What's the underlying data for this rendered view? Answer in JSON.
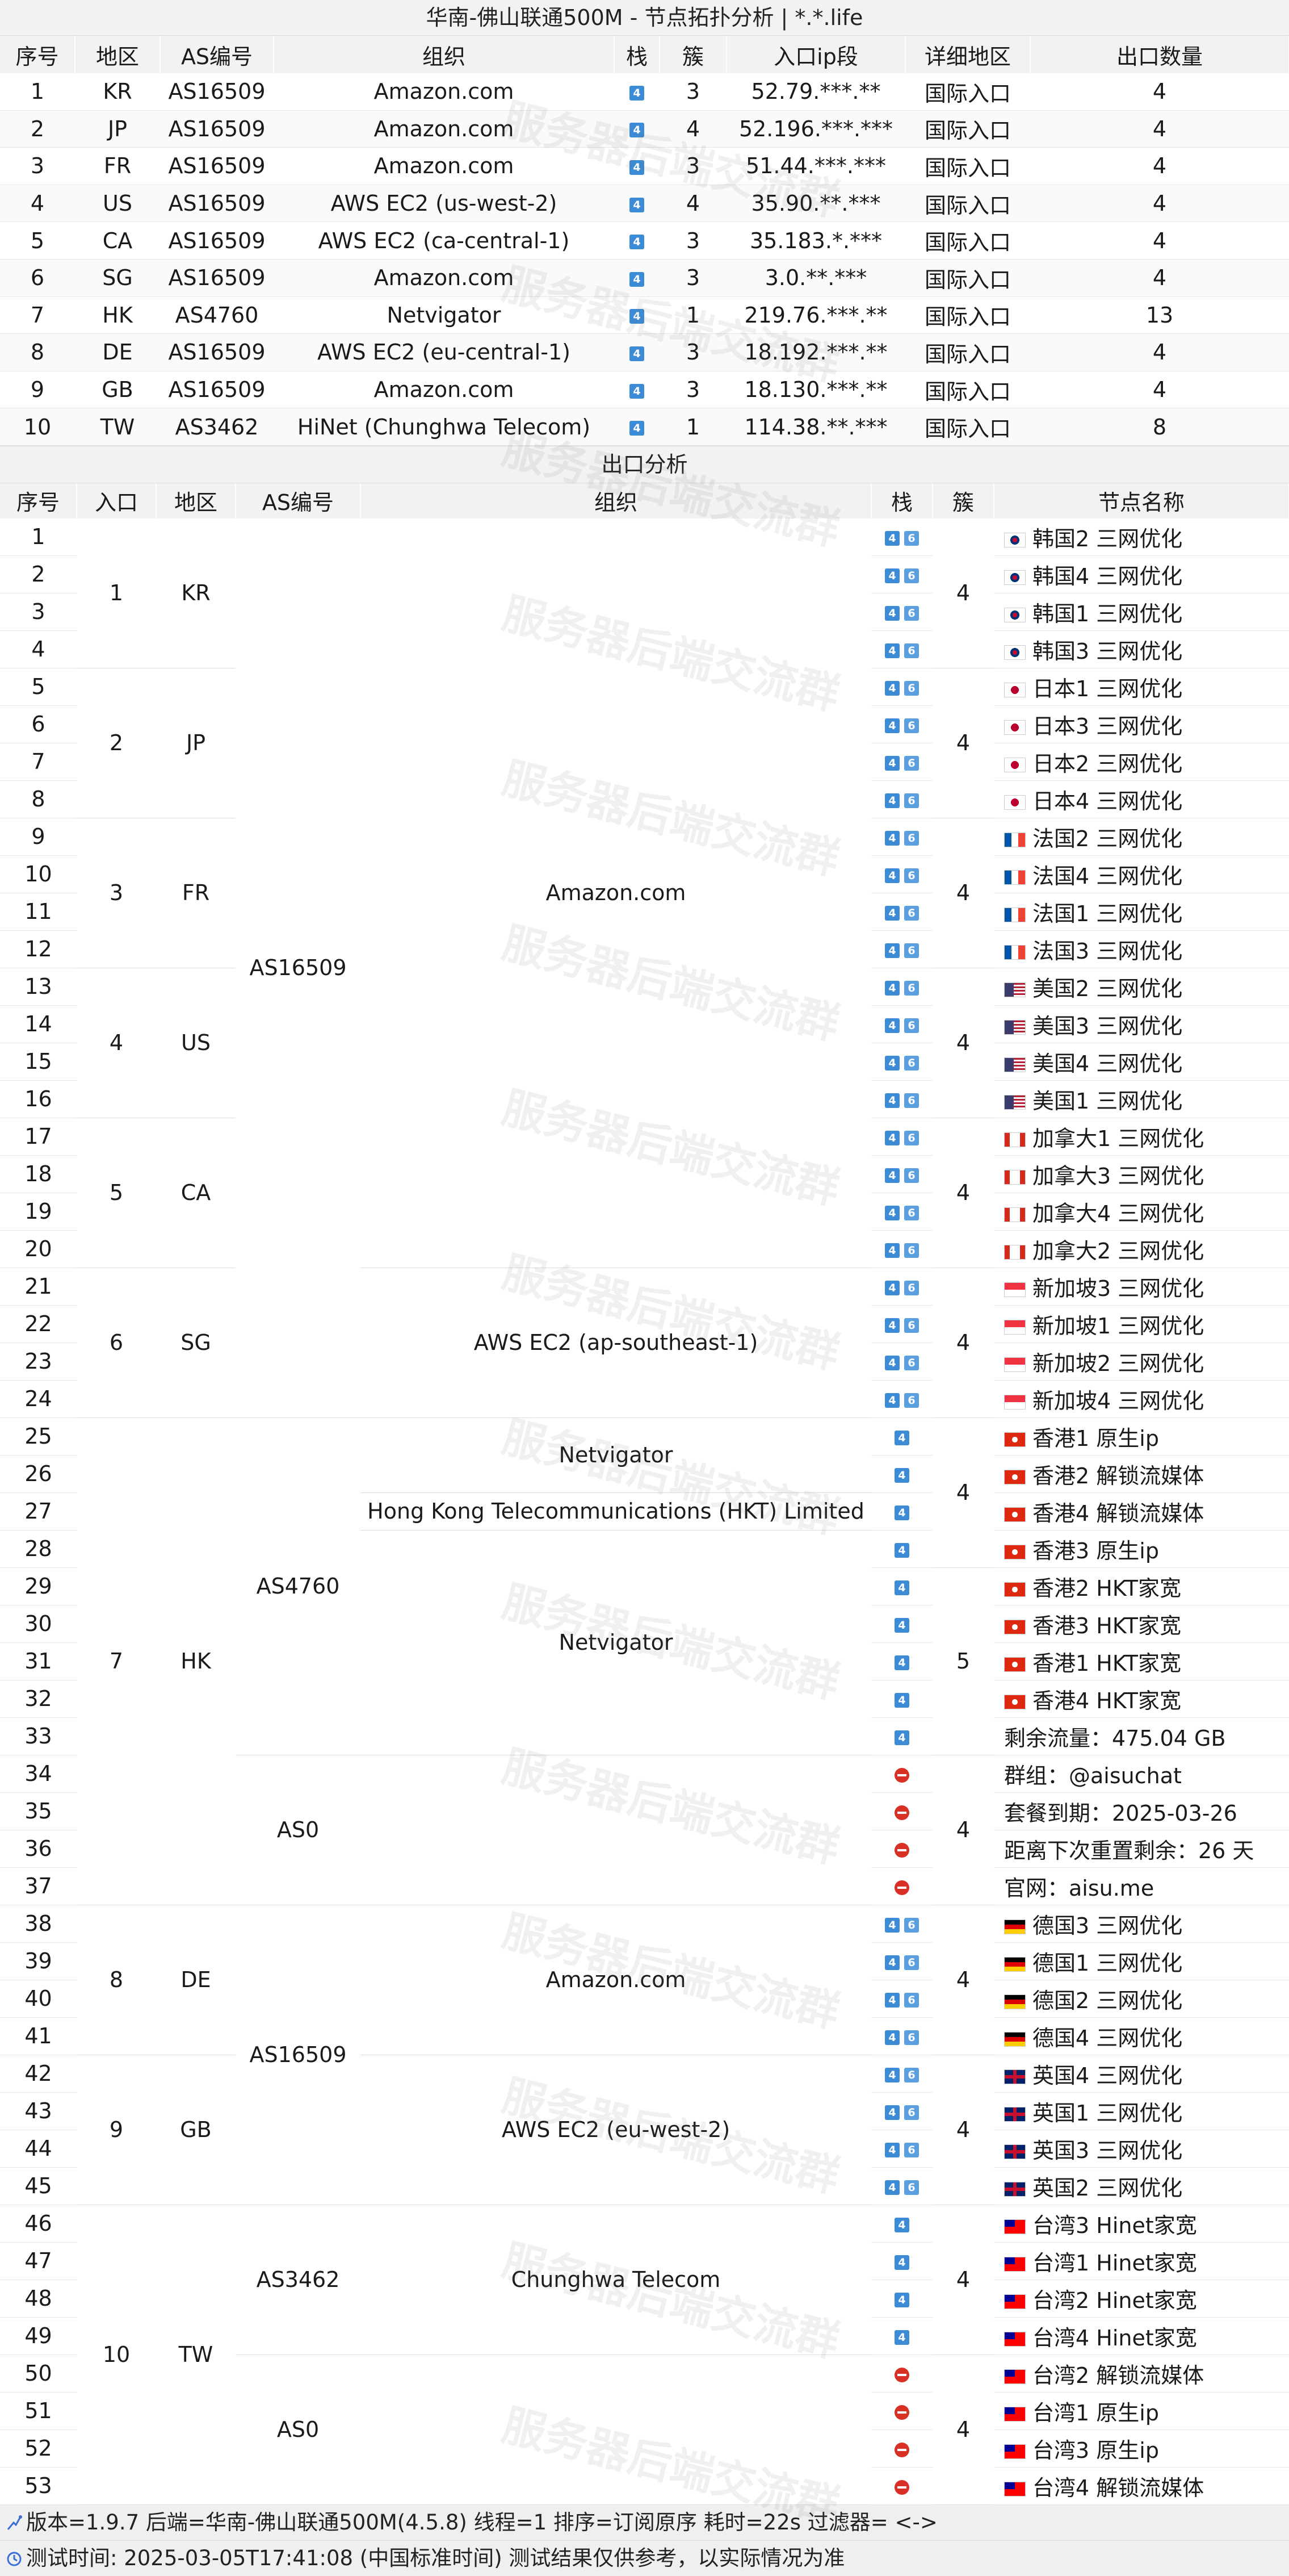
{
  "title": "华南-佛山联通500M - 节点拓扑分析 | *.*.life",
  "table1": {
    "headers": [
      "序号",
      "地区",
      "AS编号",
      "组织",
      "栈",
      "簇",
      "入口ip段",
      "详细地区",
      "出口数量"
    ],
    "rows": [
      {
        "no": "1",
        "region": "KR",
        "as": "AS16509",
        "org": "Amazon.com",
        "stack": "4",
        "cluster": "3",
        "ip": "52.79.***.**",
        "detail": "国际入口",
        "count": "4"
      },
      {
        "no": "2",
        "region": "JP",
        "as": "AS16509",
        "org": "Amazon.com",
        "stack": "4",
        "cluster": "4",
        "ip": "52.196.***.***",
        "detail": "国际入口",
        "count": "4"
      },
      {
        "no": "3",
        "region": "FR",
        "as": "AS16509",
        "org": "Amazon.com",
        "stack": "4",
        "cluster": "3",
        "ip": "51.44.***.***",
        "detail": "国际入口",
        "count": "4"
      },
      {
        "no": "4",
        "region": "US",
        "as": "AS16509",
        "org": "AWS EC2 (us-west-2)",
        "stack": "4",
        "cluster": "4",
        "ip": "35.90.**.***",
        "detail": "国际入口",
        "count": "4"
      },
      {
        "no": "5",
        "region": "CA",
        "as": "AS16509",
        "org": "AWS EC2 (ca-central-1)",
        "stack": "4",
        "cluster": "3",
        "ip": "35.183.*.***",
        "detail": "国际入口",
        "count": "4"
      },
      {
        "no": "6",
        "region": "SG",
        "as": "AS16509",
        "org": "Amazon.com",
        "stack": "4",
        "cluster": "3",
        "ip": "3.0.**.***",
        "detail": "国际入口",
        "count": "4"
      },
      {
        "no": "7",
        "region": "HK",
        "as": "AS4760",
        "org": "Netvigator",
        "stack": "4",
        "cluster": "1",
        "ip": "219.76.***.**",
        "detail": "国际入口",
        "count": "13"
      },
      {
        "no": "8",
        "region": "DE",
        "as": "AS16509",
        "org": "AWS EC2 (eu-central-1)",
        "stack": "4",
        "cluster": "3",
        "ip": "18.192.***.**",
        "detail": "国际入口",
        "count": "4"
      },
      {
        "no": "9",
        "region": "GB",
        "as": "AS16509",
        "org": "Amazon.com",
        "stack": "4",
        "cluster": "3",
        "ip": "18.130.***.**",
        "detail": "国际入口",
        "count": "4"
      },
      {
        "no": "10",
        "region": "TW",
        "as": "AS3462",
        "org": "HiNet (Chunghwa Telecom)",
        "stack": "4",
        "cluster": "1",
        "ip": "114.38.**.***",
        "detail": "国际入口",
        "count": "8"
      }
    ]
  },
  "section2_title": "出口分析",
  "table2": {
    "headers": [
      "序号",
      "入口",
      "地区",
      "AS编号",
      "组织",
      "栈",
      "簇",
      "节点名称"
    ],
    "entries": [
      {
        "entry": "1",
        "region": "KR",
        "start": 1,
        "span": 4
      },
      {
        "entry": "2",
        "region": "JP",
        "start": 5,
        "span": 4
      },
      {
        "entry": "3",
        "region": "FR",
        "start": 9,
        "span": 4
      },
      {
        "entry": "4",
        "region": "US",
        "start": 13,
        "span": 4
      },
      {
        "entry": "5",
        "region": "CA",
        "start": 17,
        "span": 4
      },
      {
        "entry": "6",
        "region": "SG",
        "start": 21,
        "span": 4
      },
      {
        "entry": "7",
        "region": "HK",
        "start": 25,
        "span": 13
      },
      {
        "entry": "8",
        "region": "DE",
        "start": 38,
        "span": 4
      },
      {
        "entry": "9",
        "region": "GB",
        "start": 42,
        "span": 4
      },
      {
        "entry": "10",
        "region": "TW",
        "start": 46,
        "span": 8
      }
    ],
    "as_groups": [
      {
        "as": "AS16509",
        "start": 1,
        "span": 24
      },
      {
        "as": "AS4760",
        "start": 25,
        "span": 9
      },
      {
        "as": "AS0",
        "start": 34,
        "span": 4
      },
      {
        "as": "AS16509",
        "start": 38,
        "span": 8
      },
      {
        "as": "AS3462",
        "start": 46,
        "span": 4
      },
      {
        "as": "AS0",
        "start": 50,
        "span": 4
      }
    ],
    "org_groups": [
      {
        "org": "Amazon.com",
        "start": 1,
        "span": 20
      },
      {
        "org": "AWS EC2 (ap-southeast-1)",
        "start": 21,
        "span": 4
      },
      {
        "org": "Netvigator",
        "start": 25,
        "span": 2
      },
      {
        "org": "Hong Kong Telecommunications (HKT) Limited",
        "start": 27,
        "span": 1
      },
      {
        "org": "Netvigator",
        "start": 28,
        "span": 6
      },
      {
        "org": "",
        "start": 34,
        "span": 4
      },
      {
        "org": "Amazon.com",
        "start": 38,
        "span": 4
      },
      {
        "org": "AWS EC2 (eu-west-2)",
        "start": 42,
        "span": 4
      },
      {
        "org": "Chunghwa Telecom",
        "start": 46,
        "span": 4
      },
      {
        "org": "",
        "start": 50,
        "span": 4
      }
    ],
    "cluster_groups": [
      {
        "cluster": "4",
        "start": 1,
        "span": 4
      },
      {
        "cluster": "4",
        "start": 5,
        "span": 4
      },
      {
        "cluster": "4",
        "start": 9,
        "span": 4
      },
      {
        "cluster": "4",
        "start": 13,
        "span": 4
      },
      {
        "cluster": "4",
        "start": 17,
        "span": 4
      },
      {
        "cluster": "4",
        "start": 21,
        "span": 4
      },
      {
        "cluster": "4",
        "start": 25,
        "span": 4
      },
      {
        "cluster": "5",
        "start": 29,
        "span": 5
      },
      {
        "cluster": "4",
        "start": 34,
        "span": 4
      },
      {
        "cluster": "4",
        "start": 38,
        "span": 4
      },
      {
        "cluster": "4",
        "start": 42,
        "span": 4
      },
      {
        "cluster": "4",
        "start": 46,
        "span": 4
      },
      {
        "cluster": "4",
        "start": 50,
        "span": 4
      }
    ],
    "rows": [
      {
        "no": "1",
        "stack": "46",
        "flag": "kr",
        "name": "韩国2 三网优化"
      },
      {
        "no": "2",
        "stack": "46",
        "flag": "kr",
        "name": "韩国4 三网优化"
      },
      {
        "no": "3",
        "stack": "46",
        "flag": "kr",
        "name": "韩国1 三网优化"
      },
      {
        "no": "4",
        "stack": "46",
        "flag": "kr",
        "name": "韩国3 三网优化"
      },
      {
        "no": "5",
        "stack": "46",
        "flag": "jp",
        "name": "日本1 三网优化"
      },
      {
        "no": "6",
        "stack": "46",
        "flag": "jp",
        "name": "日本3 三网优化"
      },
      {
        "no": "7",
        "stack": "46",
        "flag": "jp",
        "name": "日本2 三网优化"
      },
      {
        "no": "8",
        "stack": "46",
        "flag": "jp",
        "name": "日本4 三网优化"
      },
      {
        "no": "9",
        "stack": "46",
        "flag": "fr",
        "name": "法国2 三网优化"
      },
      {
        "no": "10",
        "stack": "46",
        "flag": "fr",
        "name": "法国4 三网优化"
      },
      {
        "no": "11",
        "stack": "46",
        "flag": "fr",
        "name": "法国1 三网优化"
      },
      {
        "no": "12",
        "stack": "46",
        "flag": "fr",
        "name": "法国3 三网优化"
      },
      {
        "no": "13",
        "stack": "46",
        "flag": "us",
        "name": "美国2 三网优化"
      },
      {
        "no": "14",
        "stack": "46",
        "flag": "us",
        "name": "美国3 三网优化"
      },
      {
        "no": "15",
        "stack": "46",
        "flag": "us",
        "name": "美国4 三网优化"
      },
      {
        "no": "16",
        "stack": "46",
        "flag": "us",
        "name": "美国1 三网优化"
      },
      {
        "no": "17",
        "stack": "46",
        "flag": "ca",
        "name": "加拿大1 三网优化"
      },
      {
        "no": "18",
        "stack": "46",
        "flag": "ca",
        "name": "加拿大3 三网优化"
      },
      {
        "no": "19",
        "stack": "46",
        "flag": "ca",
        "name": "加拿大4 三网优化"
      },
      {
        "no": "20",
        "stack": "46",
        "flag": "ca",
        "name": "加拿大2 三网优化"
      },
      {
        "no": "21",
        "stack": "46",
        "flag": "sg",
        "name": "新加坡3 三网优化"
      },
      {
        "no": "22",
        "stack": "46",
        "flag": "sg",
        "name": "新加坡1 三网优化"
      },
      {
        "no": "23",
        "stack": "46",
        "flag": "sg",
        "name": "新加坡2 三网优化"
      },
      {
        "no": "24",
        "stack": "46",
        "flag": "sg",
        "name": "新加坡4 三网优化"
      },
      {
        "no": "25",
        "stack": "4",
        "flag": "hk",
        "name": "香港1 原生ip"
      },
      {
        "no": "26",
        "stack": "4",
        "flag": "hk",
        "name": "香港2 解锁流媒体"
      },
      {
        "no": "27",
        "stack": "4",
        "flag": "hk",
        "name": "香港4 解锁流媒体"
      },
      {
        "no": "28",
        "stack": "4",
        "flag": "hk",
        "name": "香港3 原生ip"
      },
      {
        "no": "29",
        "stack": "4",
        "flag": "hk",
        "name": "香港2 HKT家宽"
      },
      {
        "no": "30",
        "stack": "4",
        "flag": "hk",
        "name": "香港3 HKT家宽"
      },
      {
        "no": "31",
        "stack": "4",
        "flag": "hk",
        "name": "香港1 HKT家宽"
      },
      {
        "no": "32",
        "stack": "4",
        "flag": "hk",
        "name": "香港4 HKT家宽"
      },
      {
        "no": "33",
        "stack": "4",
        "flag": "",
        "name": "剩余流量：475.04 GB"
      },
      {
        "no": "34",
        "stack": "x",
        "flag": "",
        "name": "群组：@aisuchat"
      },
      {
        "no": "35",
        "stack": "x",
        "flag": "",
        "name": "套餐到期：2025-03-26"
      },
      {
        "no": "36",
        "stack": "x",
        "flag": "",
        "name": "距离下次重置剩余：26 天"
      },
      {
        "no": "37",
        "stack": "x",
        "flag": "",
        "name": "官网：aisu.me"
      },
      {
        "no": "38",
        "stack": "46",
        "flag": "de",
        "name": "德国3 三网优化"
      },
      {
        "no": "39",
        "stack": "46",
        "flag": "de",
        "name": "德国1 三网优化"
      },
      {
        "no": "40",
        "stack": "46",
        "flag": "de",
        "name": "德国2 三网优化"
      },
      {
        "no": "41",
        "stack": "46",
        "flag": "de",
        "name": "德国4 三网优化"
      },
      {
        "no": "42",
        "stack": "46",
        "flag": "gb",
        "name": "英国4 三网优化"
      },
      {
        "no": "43",
        "stack": "46",
        "flag": "gb",
        "name": "英国1 三网优化"
      },
      {
        "no": "44",
        "stack": "46",
        "flag": "gb",
        "name": "英国3 三网优化"
      },
      {
        "no": "45",
        "stack": "46",
        "flag": "gb",
        "name": "英国2 三网优化"
      },
      {
        "no": "46",
        "stack": "4",
        "flag": "tw",
        "name": "台湾3 Hinet家宽"
      },
      {
        "no": "47",
        "stack": "4",
        "flag": "tw",
        "name": "台湾1 Hinet家宽"
      },
      {
        "no": "48",
        "stack": "4",
        "flag": "tw",
        "name": "台湾2 Hinet家宽"
      },
      {
        "no": "49",
        "stack": "4",
        "flag": "tw",
        "name": "台湾4 Hinet家宽"
      },
      {
        "no": "50",
        "stack": "x",
        "flag": "tw",
        "name": "台湾2 解锁流媒体"
      },
      {
        "no": "51",
        "stack": "x",
        "flag": "tw",
        "name": "台湾1 原生ip"
      },
      {
        "no": "52",
        "stack": "x",
        "flag": "tw",
        "name": "台湾3 原生ip"
      },
      {
        "no": "53",
        "stack": "x",
        "flag": "tw",
        "name": "台湾4 解锁流媒体"
      }
    ]
  },
  "footer": {
    "line1": "版本=1.9.7  后端=华南-佛山联通500M(4.5.8)  线程=1  排序=订阅原序  耗时=22s   过滤器= <->",
    "line2": "测试时间: 2025-03-05T17:41:08 (中国标准时间)  测试结果仅供参考，以实际情况为准"
  },
  "watermark": "服务器后端交流群",
  "colors": {
    "header_bg": "#f2f2f2",
    "ipv4_badge": "#3b8bd6",
    "blocked": "#d93025",
    "footer_bg": "#efefef"
  },
  "icons": {
    "ipv4": "ipv4-badge-icon",
    "ipv6": "ipv6-badge-icon",
    "blocked": "no-entry-icon",
    "logo": "fulltclash-logo-icon"
  }
}
